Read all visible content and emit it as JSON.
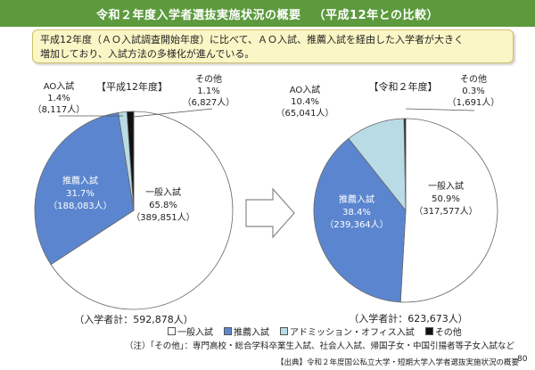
{
  "header": {
    "title": "令和２年度入学者選抜実施状況の概要",
    "subtitle": "（平成12年との比較）"
  },
  "summary": {
    "line1": "平成12年度（ＡＯ入試調査開始年度）に比べて、ＡＯ入試、推薦入試を経由した入学者が大きく",
    "line2": "増加しており、入試方法の多様化が進んでいる。"
  },
  "chart_data": [
    {
      "type": "pie",
      "title": "【平成12年度】",
      "total_label": "（入学者計：592,878人）",
      "slices": [
        {
          "name": "一般入試",
          "percent": 65.8,
          "percent_label": "65.8%",
          "count_label": "（389,851人）",
          "color": "#ffffff"
        },
        {
          "name": "推薦入試",
          "percent": 31.7,
          "percent_label": "31.7%",
          "count_label": "（188,083人）",
          "color": "#5b86cf"
        },
        {
          "name": "AO入試",
          "percent": 1.4,
          "percent_label": "1.4%",
          "count_label": "（8,117人）",
          "color": "#b9dbe6"
        },
        {
          "name": "その他",
          "percent": 1.1,
          "percent_label": "1.1%",
          "count_label": "（6,827人）",
          "color": "#111111"
        }
      ]
    },
    {
      "type": "pie",
      "title": "【令和２年度】",
      "total_label": "（入学者計：623,673人）",
      "slices": [
        {
          "name": "一般入試",
          "percent": 50.9,
          "percent_label": "50.9%",
          "count_label": "（317,577人）",
          "color": "#ffffff"
        },
        {
          "name": "推薦入試",
          "percent": 38.4,
          "percent_label": "38.4%",
          "count_label": "（239,364人）",
          "color": "#5b86cf"
        },
        {
          "name": "AO入試",
          "percent": 10.4,
          "percent_label": "10.4%",
          "count_label": "（65,041人）",
          "color": "#b9dbe6"
        },
        {
          "name": "その他",
          "percent": 0.3,
          "percent_label": "0.3%",
          "count_label": "（1,691人）",
          "color": "#111111"
        }
      ]
    }
  ],
  "legend": [
    {
      "label": "一般入試",
      "color": "#ffffff"
    },
    {
      "label": "推薦入試",
      "color": "#5b86cf"
    },
    {
      "label": "アドミッション・オフィス入試",
      "color": "#b9dbe6"
    },
    {
      "label": "その他",
      "color": "#111111"
    }
  ],
  "note": "（注）「その他」：専門高校・総合学科卒業生入試、社会人入試、帰国子女・中国引揚者等子女入試など",
  "source": "【出典】令和２年度国公私立大学・短期大学入学者選抜実施状況の概要",
  "page_number": "80"
}
